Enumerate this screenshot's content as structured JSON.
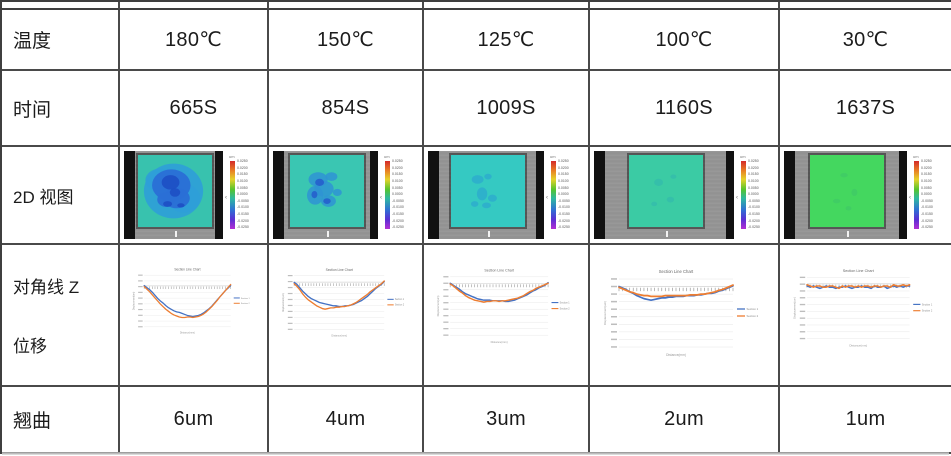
{
  "table": {
    "rows": [
      {
        "label": "温度",
        "values": [
          "180℃",
          "150℃",
          "125℃",
          "100℃",
          "30℃"
        ]
      },
      {
        "label": "时间",
        "values": [
          "665S",
          "854S",
          "1009S",
          "1160S",
          "1637S"
        ]
      },
      {
        "label": "2D 视图"
      },
      {
        "label": "对角线 Z 位移",
        "label_line1": "对角线 Z",
        "label_line2": "位移"
      },
      {
        "label": "翘曲",
        "values": [
          "6um",
          "4um",
          "3um",
          "2um",
          "1um"
        ]
      }
    ]
  },
  "heatmaps": {
    "scale": {
      "unit": "um",
      "ticks": [
        "0.0250",
        "0.0200",
        "0.0150",
        "0.0100",
        "0.0050",
        "0.0000",
        "-0.0050",
        "-0.0100",
        "-0.0150",
        "-0.0200",
        "-0.0250"
      ]
    },
    "cells": [
      {
        "base": "#38c2ae",
        "layers": [
          {
            "color": "#2f9fd8",
            "opacity": 0.9,
            "spots": [
              [
                48,
                50,
                40,
                38
              ],
              [
                30,
                35,
                20,
                16
              ],
              [
                62,
                60,
                22,
                20
              ]
            ]
          },
          {
            "color": "#2a6fd6",
            "opacity": 0.95,
            "spots": [
              [
                45,
                42,
                26,
                22
              ],
              [
                52,
                60,
                18,
                14
              ],
              [
                38,
                62,
                12,
                10
              ]
            ]
          },
          {
            "color": "#1d4fc4",
            "opacity": 0.9,
            "spots": [
              [
                44,
                38,
                12,
                10
              ],
              [
                50,
                52,
                7,
                6
              ],
              [
                40,
                68,
                6,
                4
              ],
              [
                58,
                70,
                5,
                3
              ]
            ]
          }
        ]
      },
      {
        "base": "#3ac6b2",
        "layers": [
          {
            "color": "#2f93d4",
            "opacity": 0.85,
            "spots": [
              [
                38,
                34,
                13,
                10
              ],
              [
                56,
                30,
                8,
                6
              ],
              [
                34,
                56,
                11,
                13
              ],
              [
                52,
                64,
                10,
                8
              ],
              [
                46,
                47,
                13,
                11
              ],
              [
                64,
                52,
                6,
                5
              ]
            ]
          },
          {
            "color": "#2457cc",
            "opacity": 0.8,
            "spots": [
              [
                40,
                38,
                6,
                5
              ],
              [
                50,
                64,
                5,
                4
              ],
              [
                33,
                55,
                4,
                5
              ]
            ]
          }
        ]
      },
      {
        "base": "#35c9c2",
        "layers": [
          {
            "color": "#2ba4d0",
            "opacity": 0.65,
            "spots": [
              [
                36,
                34,
                8,
                6
              ],
              [
                50,
                30,
                5,
                4
              ],
              [
                42,
                54,
                7,
                9
              ],
              [
                56,
                60,
                6,
                5
              ],
              [
                32,
                68,
                5,
                4
              ],
              [
                48,
                70,
                6,
                4
              ]
            ]
          }
        ]
      },
      {
        "base": "#3bcba4",
        "layers": [
          {
            "color": "#2fb4b0",
            "opacity": 0.5,
            "spots": [
              [
                40,
                38,
                6,
                5
              ],
              [
                56,
                62,
                5,
                4
              ],
              [
                34,
                68,
                4,
                3
              ],
              [
                60,
                30,
                4,
                3
              ]
            ]
          }
        ]
      },
      {
        "base": "#44d75f",
        "layers": [
          {
            "color": "#3bc06a",
            "opacity": 0.45,
            "spots": [
              [
                46,
                28,
                5,
                3
              ],
              [
                60,
                52,
                4,
                5
              ],
              [
                36,
                64,
                5,
                3
              ],
              [
                52,
                74,
                4,
                3
              ]
            ]
          }
        ]
      }
    ]
  },
  "chart_data": [
    {
      "type": "line",
      "title": "Section Line Chart",
      "xlabel": "Distance(mm)",
      "ylabel": "Displacement(um)",
      "temperature": "180℃",
      "warpage_um": 6,
      "ymax": 2,
      "ymin": -8,
      "grid": true,
      "legend_position": "right",
      "series": [
        {
          "name": "Section 1",
          "color": "#4472C4",
          "y": [
            0,
            -0.4,
            -0.8,
            -1.3,
            -1.9,
            -2.5,
            -3.0,
            -3.4,
            -3.9,
            -4.3,
            -4.6,
            -4.9,
            -5.1,
            -5.2,
            -5.4,
            -5.6,
            -5.8,
            -5.9,
            -6.0,
            -5.9,
            -5.8,
            -5.6,
            -5.3,
            -4.9,
            -4.5,
            -4.0,
            -3.4,
            -2.8,
            -2.2,
            -1.6,
            -1.0,
            -0.5,
            0.0
          ]
        },
        {
          "name": "Section 2",
          "color": "#ED7D31",
          "y": [
            -0.2,
            -0.7,
            -1.2,
            -1.8,
            -2.4,
            -3.0,
            -3.6,
            -4.1,
            -4.6,
            -5.0,
            -5.4,
            -5.7,
            -5.9,
            -6.1,
            -6.2,
            -6.2,
            -6.1,
            -6.1,
            -6.2,
            -6.1,
            -6.0,
            -5.8,
            -5.5,
            -5.1,
            -4.6,
            -4.1,
            -3.5,
            -2.9,
            -2.2,
            -1.6,
            -1.0,
            -0.4,
            0.2
          ]
        }
      ]
    },
    {
      "type": "line",
      "title": "Section Line Chart",
      "xlabel": "Distance(mm)",
      "ylabel": "Displacement(um)",
      "temperature": "150℃",
      "warpage_um": 4,
      "ymax": 1,
      "ymin": -7,
      "grid": true,
      "legend_position": "right",
      "series": [
        {
          "name": "Section 1",
          "color": "#4472C4",
          "y": [
            0,
            -0.3,
            -0.8,
            -1.3,
            -1.7,
            -2.1,
            -2.4,
            -2.6,
            -2.8,
            -3.0,
            -3.1,
            -3.2,
            -3.3,
            -3.4,
            -3.5,
            -3.5,
            -3.6,
            -3.6,
            -3.5,
            -3.5,
            -3.4,
            -3.3,
            -3.1,
            -2.9,
            -2.7,
            -2.4,
            -2.1,
            -1.7,
            -1.3,
            -0.9,
            -0.6,
            -0.3,
            0.1
          ]
        },
        {
          "name": "Section 2",
          "color": "#ED7D31",
          "y": [
            -0.2,
            -0.6,
            -1.1,
            -1.7,
            -2.2,
            -2.6,
            -2.9,
            -3.2,
            -3.5,
            -3.7,
            -3.9,
            -4.0,
            -3.9,
            -3.8,
            -3.8,
            -3.7,
            -3.7,
            -3.6,
            -3.6,
            -3.5,
            -3.4,
            -3.2,
            -3.0,
            -2.7,
            -2.4,
            -2.1,
            -1.8,
            -1.4,
            -1.1,
            -0.8,
            -0.5,
            -0.2,
            0.2
          ]
        }
      ]
    },
    {
      "type": "line",
      "title": "Section Line Chart",
      "xlabel": "Distance(mm)",
      "ylabel": "Displacement(um)",
      "temperature": "125℃",
      "warpage_um": 3,
      "ymax": 1,
      "ymin": -8,
      "grid": true,
      "legend_position": "right",
      "series": [
        {
          "name": "Section 1",
          "color": "#4472C4",
          "y": [
            0,
            -0.3,
            -0.6,
            -0.9,
            -1.3,
            -1.6,
            -1.8,
            -2.0,
            -2.2,
            -2.4,
            -2.5,
            -2.6,
            -2.6,
            -2.6,
            -2.7,
            -2.7,
            -2.7,
            -2.7,
            -2.8,
            -2.8,
            -2.7,
            -2.6,
            -2.4,
            -2.2,
            -2.0,
            -1.8,
            -1.5,
            -1.2,
            -1.0,
            -0.7,
            -0.5,
            -0.3,
            0.1
          ]
        },
        {
          "name": "Section 2",
          "color": "#ED7D31",
          "y": [
            -0.1,
            -0.4,
            -0.8,
            -1.2,
            -1.5,
            -1.9,
            -2.2,
            -2.4,
            -2.6,
            -2.7,
            -2.8,
            -2.9,
            -2.8,
            -2.8,
            -2.7,
            -2.7,
            -2.8,
            -2.7,
            -2.7,
            -2.6,
            -2.5,
            -2.4,
            -2.3,
            -2.1,
            -1.9,
            -1.6,
            -1.3,
            -1.1,
            -0.8,
            -0.6,
            -0.4,
            -0.2,
            0.0
          ]
        }
      ]
    },
    {
      "type": "line",
      "title": "Section Line Chart",
      "xlabel": "Distance(mm)",
      "ylabel": "Displacement(um)",
      "temperature": "100℃",
      "warpage_um": 2,
      "ymax": 1,
      "ymin": -8,
      "grid": true,
      "legend_position": "right",
      "series": [
        {
          "name": "Section 1",
          "color": "#4472C4",
          "y": [
            0,
            -0.2,
            -0.4,
            -0.7,
            -0.9,
            -1.2,
            -1.4,
            -1.6,
            -1.7,
            -1.8,
            -1.7,
            -1.6,
            -1.5,
            -1.5,
            -1.4,
            -1.4,
            -1.3,
            -1.3,
            -1.3,
            -1.2,
            -1.2,
            -1.2,
            -1.1,
            -1.1,
            -1.0,
            -0.9,
            -0.9,
            -0.8,
            -0.6,
            -0.5,
            -0.3,
            -0.1,
            0.1
          ]
        },
        {
          "name": "Section 2",
          "color": "#ED7D31",
          "y": [
            -0.1,
            -0.3,
            -0.5,
            -0.7,
            -0.8,
            -1.0,
            -1.1,
            -1.2,
            -1.2,
            -1.3,
            -1.3,
            -1.3,
            -1.3,
            -1.2,
            -1.2,
            -1.2,
            -1.2,
            -1.2,
            -1.2,
            -1.2,
            -1.1,
            -1.1,
            -1.1,
            -1.0,
            -1.0,
            -0.9,
            -0.8,
            -0.7,
            -0.5,
            -0.4,
            -0.2,
            0.0,
            0.2
          ]
        }
      ]
    },
    {
      "type": "line",
      "title": "Section Line Chart",
      "xlabel": "Distance(mm)",
      "ylabel": "Displacement(um)",
      "temperature": "30℃",
      "warpage_um": 1,
      "ymax": 0.5,
      "ymin": -4.5,
      "grid": true,
      "legend_position": "right",
      "series": [
        {
          "name": "Section 1",
          "color": "#4472C4",
          "y": [
            -0.2,
            -0.3,
            -0.2,
            -0.3,
            -0.4,
            -0.3,
            -0.2,
            -0.3,
            -0.3,
            -0.4,
            -0.3,
            -0.3,
            -0.2,
            -0.3,
            -0.4,
            -0.3,
            -0.3,
            -0.2,
            -0.3,
            -0.3,
            -0.4,
            -0.2,
            -0.3,
            -0.3,
            -0.2,
            -0.4,
            -0.3,
            -0.2,
            -0.3,
            -0.2,
            -0.3,
            -0.2,
            -0.2
          ]
        },
        {
          "name": "Section 2",
          "color": "#ED7D31",
          "y": [
            -0.1,
            -0.2,
            -0.3,
            -0.2,
            -0.2,
            -0.3,
            -0.3,
            -0.2,
            -0.2,
            -0.3,
            -0.4,
            -0.2,
            -0.3,
            -0.2,
            -0.2,
            -0.3,
            -0.2,
            -0.3,
            -0.2,
            -0.2,
            -0.3,
            -0.2,
            -0.2,
            -0.3,
            -0.2,
            -0.2,
            -0.3,
            -0.1,
            -0.2,
            -0.2,
            -0.1,
            -0.2,
            -0.1
          ]
        }
      ]
    }
  ]
}
